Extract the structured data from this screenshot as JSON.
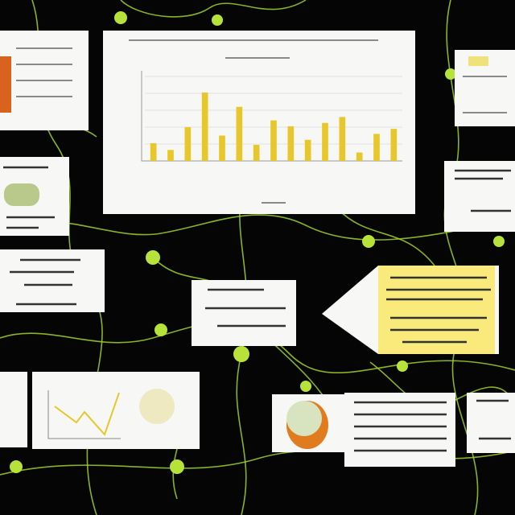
{
  "chart_data": {
    "type": "bar",
    "color": "#e8c72a",
    "values": [
      2.1,
      1.3,
      4,
      8.1,
      3,
      6.4,
      1.9,
      4.8,
      4.1,
      2.5,
      4.5,
      5.2,
      1,
      3.2,
      3.8
    ],
    "ylim": [
      0,
      10
    ]
  }
}
